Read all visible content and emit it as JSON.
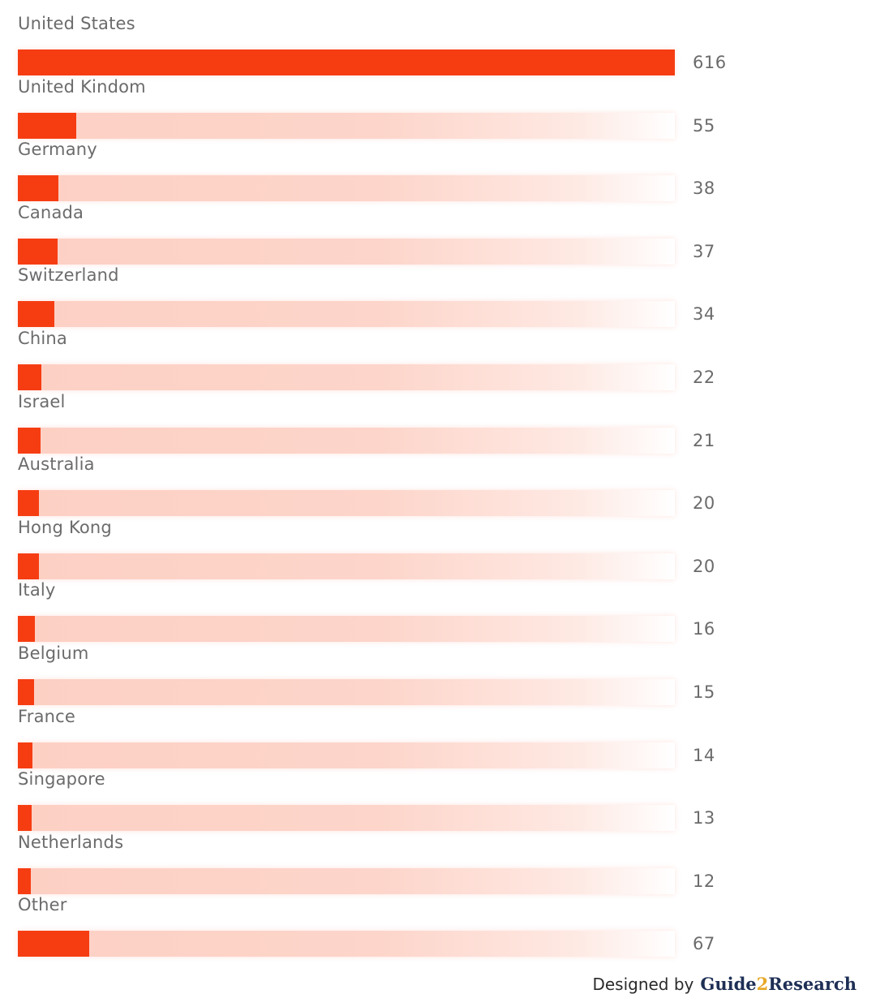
{
  "chart_data": {
    "type": "bar",
    "orientation": "horizontal",
    "categories": [
      "United States",
      "United Kindom",
      "Germany",
      "Canada",
      "Switzerland",
      "China",
      "Israel",
      "Australia",
      "Hong Kong",
      "Italy",
      "Belgium",
      "France",
      "Singapore",
      "Netherlands",
      "Other"
    ],
    "values": [
      616,
      55,
      38,
      37,
      34,
      22,
      21,
      20,
      20,
      16,
      15,
      14,
      13,
      12,
      67
    ],
    "value_labels": [
      "616",
      "55",
      "38",
      "37",
      "34",
      "22",
      "21",
      "20",
      "20",
      "16",
      "15",
      "14",
      "13",
      "12",
      "67"
    ],
    "xlim": [
      0,
      616
    ],
    "grid": false,
    "legend": "none",
    "colors": {
      "fill": "#f63d12",
      "track": "#fdd0c4",
      "text": "#6b6b6b"
    }
  },
  "footer": {
    "credit_text": "Designed by",
    "brand_part1": "Guide",
    "brand_part2": "2",
    "brand_part3": "Research"
  }
}
